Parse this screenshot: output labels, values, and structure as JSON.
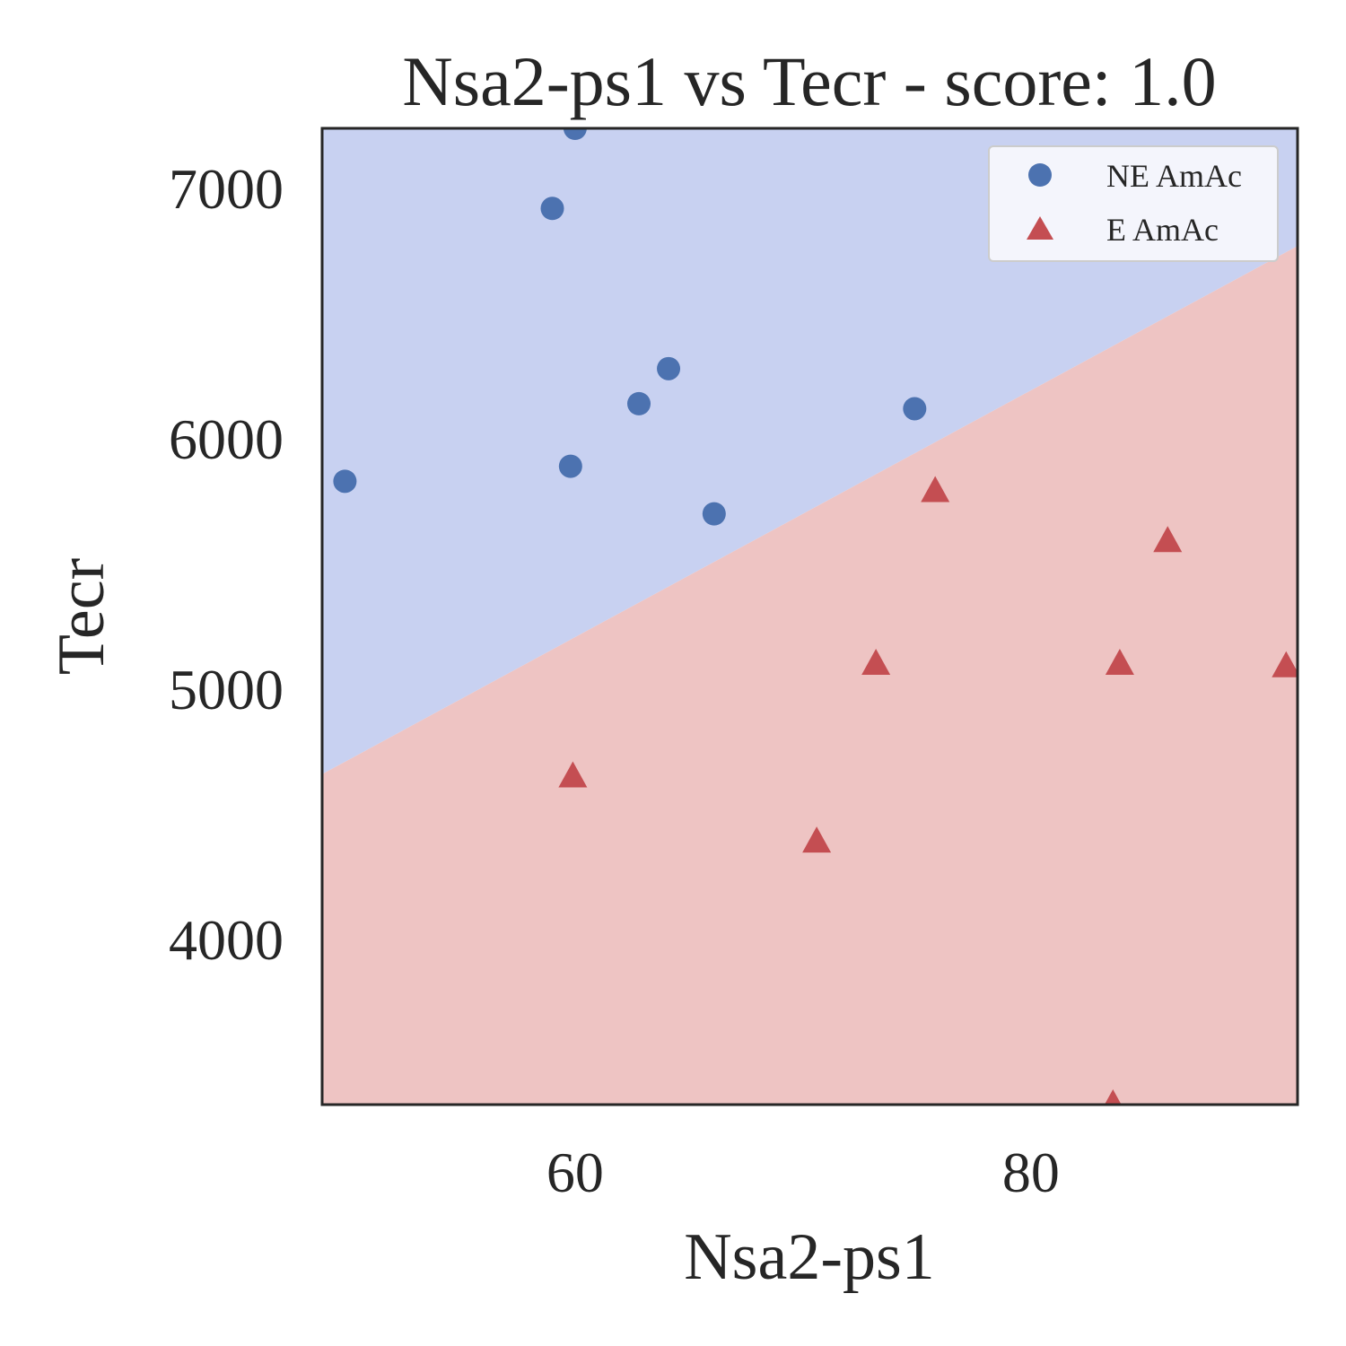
{
  "chart_data": {
    "type": "scatter",
    "title": "Nsa2-ps1 vs Tecr - score: 1.0",
    "xlabel": "Nsa2-ps1",
    "ylabel": "Tecr",
    "xlim": [
      48.9,
      91.7
    ],
    "ylim": [
      3340,
      7240
    ],
    "xticks": [
      60,
      80
    ],
    "yticks": [
      4000,
      5000,
      6000,
      7000
    ],
    "grid": false,
    "legend_position": "top-right",
    "decision_boundary": {
      "points": [
        [
          48.9,
          4660
        ],
        [
          91.7,
          6770
        ]
      ],
      "upper_region_color": "#c8d1f1",
      "lower_region_color": "#eec4c3"
    },
    "series": [
      {
        "name": "NE AmAc",
        "marker": "circle",
        "color": "#4c72b0",
        "points": [
          [
            60.0,
            7240
          ],
          [
            59.0,
            6920
          ],
          [
            64.1,
            6280
          ],
          [
            62.8,
            6140
          ],
          [
            74.9,
            6120
          ],
          [
            59.8,
            5890
          ],
          [
            49.9,
            5830
          ],
          [
            66.1,
            5700
          ]
        ]
      },
      {
        "name": "E AmAc",
        "marker": "triangle",
        "color": "#c44e52",
        "points": [
          [
            75.8,
            5790
          ],
          [
            86.0,
            5590
          ],
          [
            73.2,
            5100
          ],
          [
            83.9,
            5100
          ],
          [
            91.2,
            5090
          ],
          [
            59.9,
            4650
          ],
          [
            70.6,
            4390
          ],
          [
            83.6,
            3340
          ]
        ]
      }
    ]
  }
}
